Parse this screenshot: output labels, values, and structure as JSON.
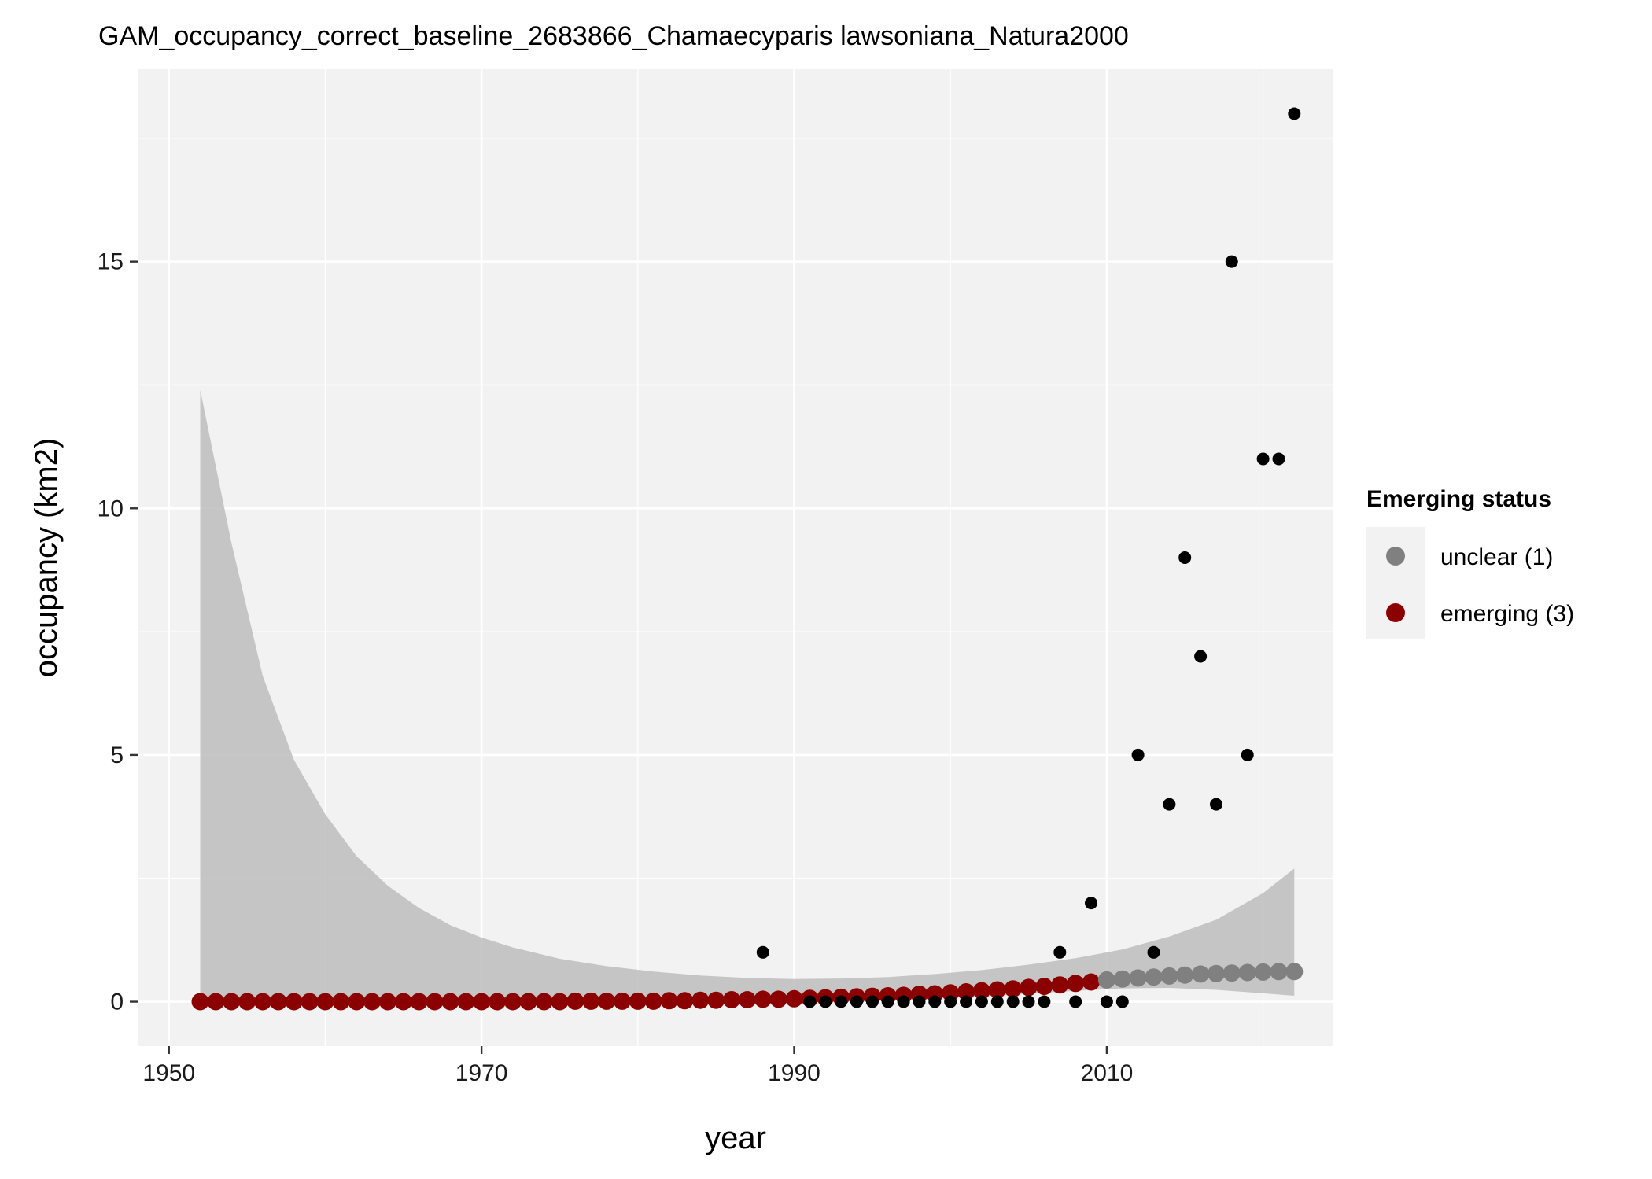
{
  "chart_data": {
    "type": "scatter",
    "title": "GAM_occupancy_correct_baseline_2683866_Chamaecyparis lawsoniana_Natura2000",
    "xlabel": "year",
    "ylabel": "occupancy (km2)",
    "xlim": [
      1948,
      2024.5
    ],
    "ylim": [
      -0.9,
      18.9
    ],
    "x_ticks": [
      1950,
      1970,
      1990,
      2010
    ],
    "y_ticks": [
      0,
      5,
      10,
      15
    ],
    "grid": true,
    "legend": {
      "title": "Emerging status",
      "position": "right",
      "entries": [
        {
          "label": "unclear (1)",
          "color": "#808080"
        },
        {
          "label": "emerging (3)",
          "color": "#8b0000"
        }
      ]
    },
    "colors": {
      "panel": "#f2f2f2",
      "grid": "#ffffff",
      "ribbon": "#bdbdbd",
      "observed": "#000000",
      "emerging": "#8b0000",
      "unclear": "#808080"
    },
    "observed": {
      "name": "observed",
      "x": [
        1988,
        1991,
        1992,
        1993,
        1994,
        1995,
        1996,
        1997,
        1998,
        1999,
        2000,
        2001,
        2002,
        2003,
        2004,
        2005,
        2006,
        2007,
        2008,
        2009,
        2010,
        2011,
        2012,
        2013,
        2014,
        2015,
        2016,
        2017,
        2018,
        2019,
        2020,
        2021,
        2022
      ],
      "y": [
        1,
        0,
        0,
        0,
        0,
        0,
        0,
        0,
        0,
        0,
        0,
        0,
        0,
        0,
        0,
        0,
        0,
        1,
        0,
        2,
        0,
        0,
        5,
        1,
        4,
        9,
        7,
        4,
        15,
        5,
        11,
        11,
        18
      ]
    },
    "fitted": {
      "x": [
        1952,
        1953,
        1954,
        1955,
        1956,
        1957,
        1958,
        1959,
        1960,
        1961,
        1962,
        1963,
        1964,
        1965,
        1966,
        1967,
        1968,
        1969,
        1970,
        1971,
        1972,
        1973,
        1974,
        1975,
        1976,
        1977,
        1978,
        1979,
        1980,
        1981,
        1982,
        1983,
        1984,
        1985,
        1986,
        1987,
        1988,
        1989,
        1990,
        1991,
        1992,
        1993,
        1994,
        1995,
        1996,
        1997,
        1998,
        1999,
        2000,
        2001,
        2002,
        2003,
        2004,
        2005,
        2006,
        2007,
        2008,
        2009,
        2010,
        2011,
        2012,
        2013,
        2014,
        2015,
        2016,
        2017,
        2018,
        2019,
        2020,
        2021,
        2022
      ],
      "y": [
        0.0,
        0.0,
        0.0,
        0.0,
        0.0,
        0.0,
        0.0,
        0.0,
        0.0,
        0.0,
        0.0,
        0.0,
        0.0,
        0.0,
        0.0,
        0.0,
        0.0,
        0.0,
        0.0,
        0.0,
        0.0,
        0.0,
        0.0,
        0.0,
        0.01,
        0.01,
        0.01,
        0.01,
        0.01,
        0.01,
        0.02,
        0.02,
        0.03,
        0.03,
        0.04,
        0.04,
        0.05,
        0.05,
        0.06,
        0.07,
        0.08,
        0.09,
        0.1,
        0.11,
        0.12,
        0.13,
        0.15,
        0.16,
        0.18,
        0.2,
        0.22,
        0.24,
        0.26,
        0.29,
        0.31,
        0.34,
        0.37,
        0.4,
        0.44,
        0.46,
        0.48,
        0.5,
        0.52,
        0.54,
        0.56,
        0.57,
        0.58,
        0.59,
        0.6,
        0.61,
        0.61
      ],
      "status": [
        "emerging (3)",
        "emerging (3)",
        "emerging (3)",
        "emerging (3)",
        "emerging (3)",
        "emerging (3)",
        "emerging (3)",
        "emerging (3)",
        "emerging (3)",
        "emerging (3)",
        "emerging (3)",
        "emerging (3)",
        "emerging (3)",
        "emerging (3)",
        "emerging (3)",
        "emerging (3)",
        "emerging (3)",
        "emerging (3)",
        "emerging (3)",
        "emerging (3)",
        "emerging (3)",
        "emerging (3)",
        "emerging (3)",
        "emerging (3)",
        "emerging (3)",
        "emerging (3)",
        "emerging (3)",
        "emerging (3)",
        "emerging (3)",
        "emerging (3)",
        "emerging (3)",
        "emerging (3)",
        "emerging (3)",
        "emerging (3)",
        "emerging (3)",
        "emerging (3)",
        "emerging (3)",
        "emerging (3)",
        "emerging (3)",
        "emerging (3)",
        "emerging (3)",
        "emerging (3)",
        "emerging (3)",
        "emerging (3)",
        "emerging (3)",
        "emerging (3)",
        "emerging (3)",
        "emerging (3)",
        "emerging (3)",
        "emerging (3)",
        "emerging (3)",
        "emerging (3)",
        "emerging (3)",
        "emerging (3)",
        "emerging (3)",
        "emerging (3)",
        "emerging (3)",
        "emerging (3)",
        "unclear (1)",
        "unclear (1)",
        "unclear (1)",
        "unclear (1)",
        "unclear (1)",
        "unclear (1)",
        "unclear (1)",
        "unclear (1)",
        "unclear (1)",
        "unclear (1)",
        "unclear (1)",
        "unclear (1)",
        "unclear (1)"
      ]
    },
    "ribbon": {
      "x": [
        1952,
        1954,
        1956,
        1958,
        1960,
        1962,
        1964,
        1966,
        1968,
        1970,
        1972,
        1975,
        1978,
        1981,
        1984,
        1987,
        1990,
        1993,
        1996,
        1999,
        2002,
        2005,
        2008,
        2011,
        2014,
        2017,
        2020,
        2022
      ],
      "lower": [
        0.0,
        0.0,
        0.0,
        0.0,
        0.0,
        0.0,
        0.0,
        0.0,
        0.0,
        0.0,
        0.0,
        0.0,
        0.0,
        0.0,
        0.0,
        0.0,
        0.01,
        0.02,
        0.04,
        0.07,
        0.11,
        0.16,
        0.22,
        0.27,
        0.28,
        0.24,
        0.17,
        0.12
      ],
      "upper": [
        12.4,
        9.3,
        6.6,
        4.9,
        3.8,
        2.95,
        2.35,
        1.9,
        1.55,
        1.3,
        1.1,
        0.87,
        0.72,
        0.61,
        0.53,
        0.48,
        0.46,
        0.47,
        0.5,
        0.56,
        0.64,
        0.75,
        0.88,
        1.06,
        1.32,
        1.66,
        2.2,
        2.7
      ]
    }
  }
}
